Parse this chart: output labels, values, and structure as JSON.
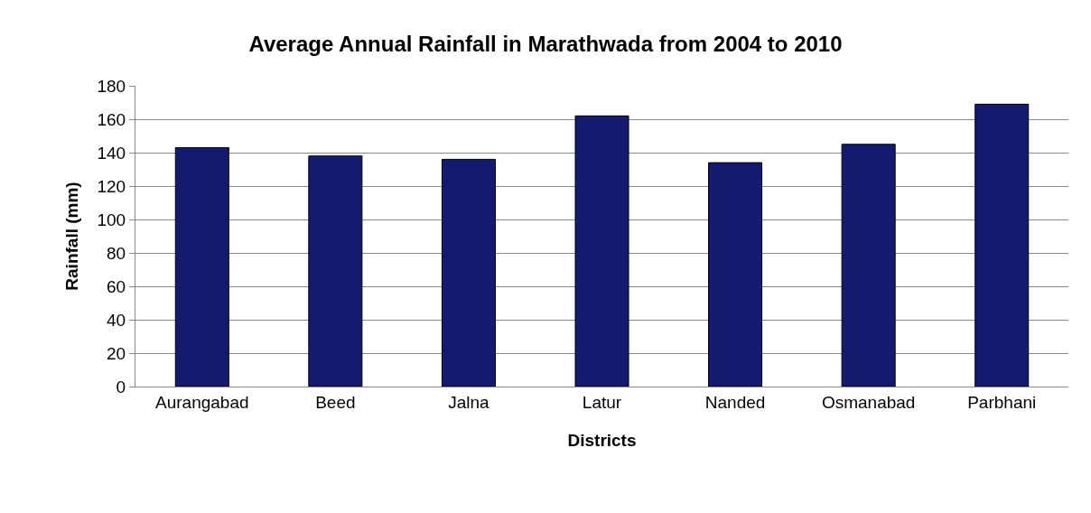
{
  "chart_data": {
    "type": "bar",
    "title": "Average Annual Rainfall in Marathwada from 2004 to 2010",
    "xlabel": "Districts",
    "ylabel": "Rainfall (mm)",
    "categories": [
      "Aurangabad",
      "Beed",
      "Jalna",
      "Latur",
      "Nanded",
      "Osmanabad",
      "Parbhani"
    ],
    "series": [
      {
        "color": "#141a6e",
        "values": [
          143,
          138,
          136,
          162,
          134,
          145,
          169
        ]
      }
    ],
    "ylim": [
      0,
      180
    ],
    "yticks": [
      0,
      20,
      40,
      60,
      80,
      100,
      120,
      140,
      160,
      180
    ],
    "grid": "y"
  }
}
